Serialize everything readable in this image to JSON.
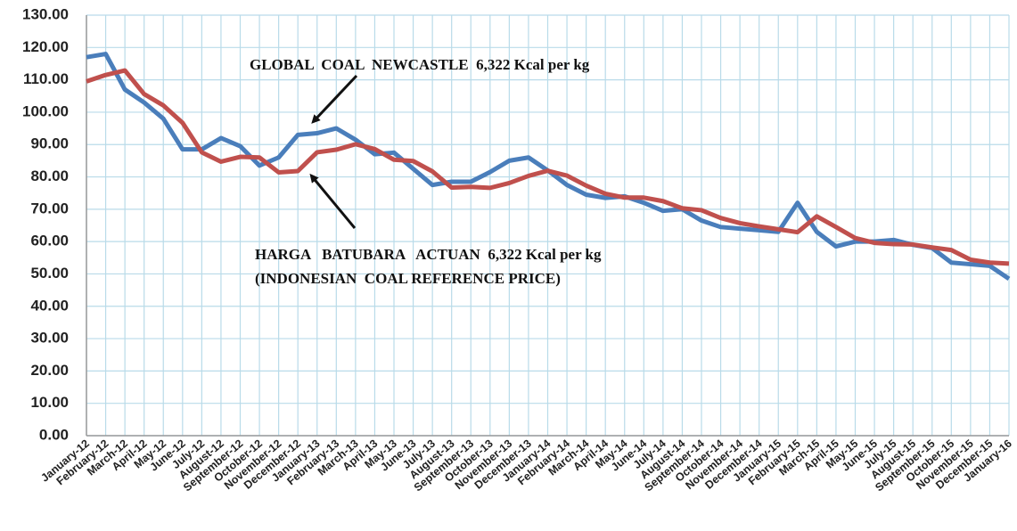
{
  "chart_data": {
    "type": "line",
    "categories": [
      "January-12",
      "February-12",
      "March-12",
      "April-12",
      "May-12",
      "June-12",
      "July-12",
      "August-12",
      "September-12",
      "October-12",
      "November-12",
      "December-12",
      "January-13",
      "February-13",
      "March-13",
      "April-13",
      "May-13",
      "June-13",
      "July-13",
      "August-13",
      "September-13",
      "October-13",
      "November-13",
      "December-13",
      "January-14",
      "February-14",
      "March-14",
      "April-14",
      "May-14",
      "June-14",
      "July-14",
      "August-14",
      "September-14",
      "October-14",
      "November-14",
      "December-14",
      "January-15",
      "February-15",
      "March-15",
      "April-15",
      "May-15",
      "June-15",
      "July-15",
      "August-15",
      "September-15",
      "October-15",
      "November-15",
      "December-15",
      "January-16"
    ],
    "series": [
      {
        "color": "#4a7ebb",
        "values": [
          117,
          118,
          107,
          103,
          98,
          88.5,
          88.5,
          92,
          89.5,
          83.5,
          86,
          93,
          93.5,
          95,
          91.5,
          87,
          87.5,
          82.5,
          77.5,
          78.5,
          78.5,
          81.5,
          85,
          86,
          82,
          77.5,
          74.5,
          73.5,
          74,
          72,
          69.5,
          70,
          66.5,
          64.5,
          64,
          63.5,
          63,
          72,
          63,
          58.5,
          60,
          60,
          60.5,
          59,
          58,
          53.5,
          53,
          52.5,
          48.5
        ]
      },
      {
        "color": "#c0504d",
        "values": [
          109.5,
          111.5,
          112.9,
          105.6,
          102.1,
          96.7,
          87.6,
          84.7,
          86.2,
          86,
          81.4,
          81.8,
          87.6,
          88.4,
          90.1,
          88.6,
          85.3,
          84.9,
          81.7,
          76.7,
          76.9,
          76.6,
          78.1,
          80.3,
          81.9,
          80.4,
          77.3,
          74.8,
          73.6,
          73.6,
          72.5,
          70.3,
          69.7,
          67.3,
          65.7,
          64.7,
          63.8,
          62.9,
          67.8,
          64.5,
          61.1,
          59.6,
          59.2,
          59.1,
          58.2,
          57.4,
          54.4,
          53.5,
          53.2
        ]
      }
    ],
    "annotations": [
      "GLOBAL  COAL  NEWCASTLE  6,322 Kcal per kg",
      "HARGA   BATUBARA   ACTUAN  6,322 Kcal per kg",
      "(INDONESIAN  COAL REFERENCE PRICE)"
    ],
    "ylim": [
      0,
      130
    ],
    "yticks": [
      {
        "value": 0,
        "label": "0.00"
      },
      {
        "value": 10,
        "label": "10.00"
      },
      {
        "value": 20,
        "label": "20.00"
      },
      {
        "value": 30,
        "label": "30.00"
      },
      {
        "value": 40,
        "label": "40.00"
      },
      {
        "value": 50,
        "label": "50.00"
      },
      {
        "value": 60,
        "label": "60.00"
      },
      {
        "value": 70,
        "label": "70.00"
      },
      {
        "value": 80,
        "label": "80.00"
      },
      {
        "value": 90,
        "label": "90.00"
      },
      {
        "value": 100,
        "label": "100.00"
      },
      {
        "value": 110,
        "label": "110.00"
      },
      {
        "value": 120,
        "label": "120.00"
      },
      {
        "value": 130,
        "label": "130.00"
      }
    ],
    "grid": true
  }
}
